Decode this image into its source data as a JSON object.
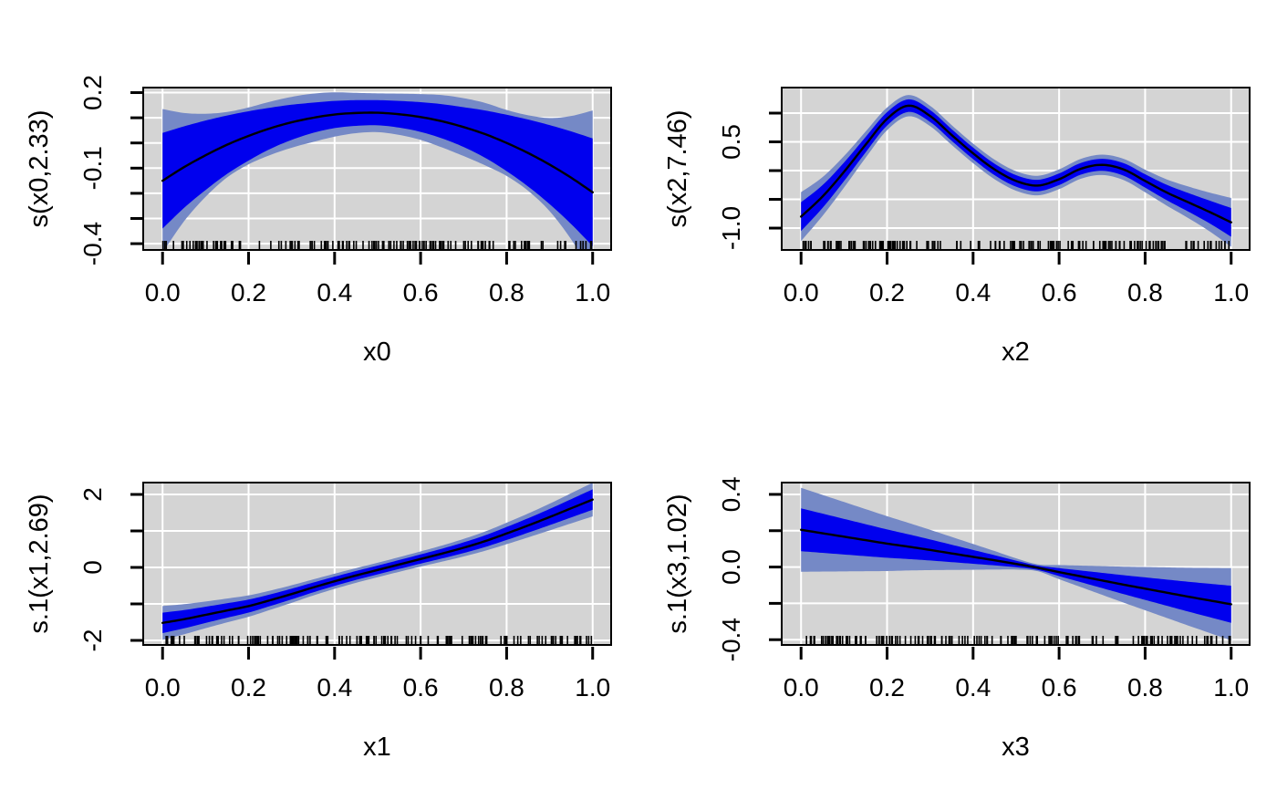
{
  "figure": {
    "background": "#ffffff",
    "panel_bg": "#d4d4d4",
    "grid_color": "#ffffff",
    "outer_band_color": "#7589c6",
    "inner_band_color": "#0000ee",
    "fit_line_color": "#000000",
    "rug_color": "#000000",
    "border_color": "#000000",
    "tick_color": "#000000"
  },
  "chart_data": {
    "type": "line",
    "description": "Four GAM smooth term plots (mgcv style): fitted smooth with inner and outer confidence bands and data rug",
    "legend": "none",
    "grid": "on",
    "x_grid": [
      0,
      0.05,
      0.1,
      0.15,
      0.2,
      0.25,
      0.3,
      0.35,
      0.4,
      0.45,
      0.5,
      0.55,
      0.6,
      0.65,
      0.7,
      0.75,
      0.8,
      0.85,
      0.9,
      0.95,
      1
    ],
    "shared_xticks": {
      "values": [
        0,
        0.2,
        0.4,
        0.6,
        0.8,
        1
      ],
      "labels": [
        "0.0",
        "0.2",
        "0.4",
        "0.6",
        "0.8",
        "1.0"
      ]
    },
    "panels": [
      {
        "id": "x0",
        "position": "top-left",
        "xlabel": "x0",
        "ylabel": "s(x0,2.33)",
        "xlim": [
          -0.045,
          1.043
        ],
        "ylim": [
          -0.425,
          0.22
        ],
        "yticks": {
          "values": [
            0.2,
            0.1,
            0,
            -0.1,
            -0.2,
            -0.3,
            -0.4
          ],
          "labels": [
            "0.2",
            "",
            "",
            "-0.1",
            "",
            "",
            "-0.4"
          ]
        },
        "fit": [
          -0.15,
          -0.096,
          -0.049,
          -0.007,
          0.028,
          0.058,
          0.082,
          0.1,
          0.113,
          0.119,
          0.12,
          0.114,
          0.103,
          0.086,
          0.063,
          0.035,
          0.0,
          -0.04,
          -0.086,
          -0.138,
          -0.196
        ],
        "se_inner": [
          0.19,
          0.162,
          0.138,
          0.116,
          0.098,
          0.082,
          0.07,
          0.06,
          0.054,
          0.051,
          0.05,
          0.053,
          0.059,
          0.068,
          0.079,
          0.094,
          0.112,
          0.133,
          0.157,
          0.184,
          0.214
        ],
        "se_outer": [
          0.285,
          0.215,
          0.165,
          0.13,
          0.113,
          0.106,
          0.101,
          0.096,
          0.088,
          0.08,
          0.077,
          0.082,
          0.091,
          0.104,
          0.115,
          0.124,
          0.131,
          0.15,
          0.185,
          0.245,
          0.325
        ],
        "rug": {
          "count": 150,
          "seed": 11
        }
      },
      {
        "id": "x2",
        "position": "top-right",
        "xlabel": "x2",
        "ylabel": "s(x2,7.46)",
        "xlim": [
          -0.045,
          1.043
        ],
        "ylim": [
          -1.38,
          1.444
        ],
        "yticks": {
          "values": [
            1,
            0.5,
            0,
            -0.5,
            -1
          ],
          "labels": [
            "",
            "0.5",
            "",
            "",
            "-1.0"
          ]
        },
        "fit": [
          -0.8,
          -0.45,
          -0.02,
          0.45,
          0.9,
          1.13,
          0.95,
          0.62,
          0.3,
          0.02,
          -0.18,
          -0.26,
          -0.15,
          0.03,
          0.1,
          0.02,
          -0.18,
          -0.38,
          -0.55,
          -0.72,
          -0.9
        ],
        "se_inner": [
          0.25,
          0.198,
          0.161,
          0.134,
          0.116,
          0.109,
          0.104,
          0.101,
          0.1,
          0.1,
          0.1,
          0.1,
          0.101,
          0.102,
          0.104,
          0.109,
          0.116,
          0.134,
          0.161,
          0.198,
          0.25
        ],
        "se_outer": [
          0.425,
          0.337,
          0.274,
          0.228,
          0.197,
          0.185,
          0.177,
          0.172,
          0.17,
          0.17,
          0.17,
          0.17,
          0.172,
          0.173,
          0.177,
          0.185,
          0.197,
          0.228,
          0.274,
          0.337,
          0.425
        ],
        "rug": {
          "count": 160,
          "seed": 23
        }
      },
      {
        "id": "x1",
        "position": "bottom-left",
        "xlabel": "x1",
        "ylabel": "s.1(x1,2.69)",
        "xlim": [
          -0.045,
          1.043
        ],
        "ylim": [
          -2.125,
          2.325
        ],
        "yticks": {
          "values": [
            2,
            1,
            0,
            -1,
            -2
          ],
          "labels": [
            "2",
            "",
            "0",
            "",
            "-2"
          ]
        },
        "fit": [
          -1.52,
          -1.42,
          -1.3,
          -1.18,
          -1.06,
          -0.9,
          -0.73,
          -0.55,
          -0.38,
          -0.22,
          -0.07,
          0.08,
          0.23,
          0.38,
          0.54,
          0.72,
          0.93,
          1.15,
          1.38,
          1.62,
          1.86
        ],
        "se_inner": [
          0.28,
          0.25,
          0.222,
          0.198,
          0.178,
          0.16,
          0.146,
          0.134,
          0.126,
          0.122,
          0.12,
          0.122,
          0.126,
          0.134,
          0.146,
          0.16,
          0.178,
          0.198,
          0.222,
          0.25,
          0.28
        ],
        "se_outer": [
          0.462,
          0.413,
          0.366,
          0.327,
          0.294,
          0.264,
          0.241,
          0.221,
          0.208,
          0.201,
          0.198,
          0.201,
          0.208,
          0.221,
          0.241,
          0.264,
          0.294,
          0.327,
          0.366,
          0.413,
          0.462
        ],
        "rug": {
          "count": 150,
          "seed": 37
        }
      },
      {
        "id": "x3",
        "position": "bottom-right",
        "xlabel": "x3",
        "ylabel": "s.1(x3,1.02)",
        "xlim": [
          -0.045,
          1.043
        ],
        "ylim": [
          -0.429,
          0.465
        ],
        "yticks": {
          "values": [
            0.4,
            0.2,
            0,
            -0.2,
            -0.4
          ],
          "labels": [
            "0.4",
            "",
            "0.0",
            "",
            "-0.4"
          ]
        },
        "fit": [
          0.205,
          0.186,
          0.167,
          0.148,
          0.129,
          0.112,
          0.094,
          0.075,
          0.056,
          0.037,
          0.017,
          -0.004,
          -0.028,
          -0.051,
          -0.074,
          -0.097,
          -0.119,
          -0.141,
          -0.163,
          -0.184,
          -0.205
        ],
        "se_inner": [
          0.118,
          0.108,
          0.098,
          0.088,
          0.078,
          0.068,
          0.058,
          0.048,
          0.038,
          0.028,
          0.018,
          0.012,
          0.022,
          0.032,
          0.042,
          0.052,
          0.062,
          0.072,
          0.082,
          0.092,
          0.102
        ],
        "se_outer": [
          0.231,
          0.211,
          0.191,
          0.171,
          0.151,
          0.131,
          0.111,
          0.091,
          0.071,
          0.051,
          0.031,
          0.019,
          0.039,
          0.059,
          0.079,
          0.099,
          0.119,
          0.139,
          0.159,
          0.179,
          0.199
        ],
        "rug": {
          "count": 150,
          "seed": 53
        }
      }
    ]
  }
}
